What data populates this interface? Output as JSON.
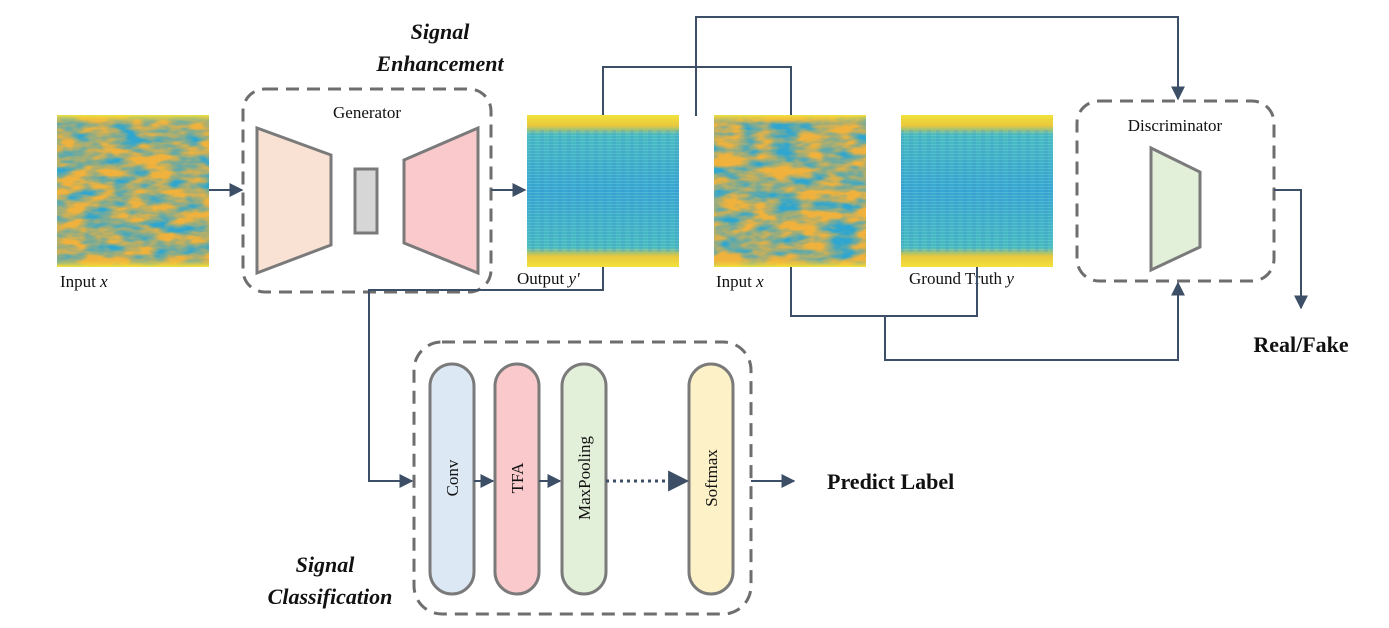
{
  "sections": {
    "enhancement_title": [
      "Signal",
      "Enhancement"
    ],
    "classification_title": [
      "Signal",
      "Classification"
    ]
  },
  "generator": {
    "label": "Generator"
  },
  "discriminator": {
    "label": "Discriminator",
    "output": "Real/Fake"
  },
  "images": {
    "input1": {
      "label": "Input ",
      "var": "x"
    },
    "output": {
      "label": "Output ",
      "var": "y'"
    },
    "input2": {
      "label": "Input ",
      "var": "x"
    },
    "ground_truth": {
      "label": "Ground Truth ",
      "var": "y"
    }
  },
  "classifier": {
    "layers": [
      "Conv",
      "TFA",
      "MaxPooling",
      "Softmax"
    ],
    "output": "Predict Label"
  },
  "colors": {
    "arrow": "#3d4f66",
    "dashed_box": "#6e6e6e",
    "encoder": "#f9e1d4",
    "bottleneck": "#d6d6d6",
    "decoder": "#f9c9cc",
    "discriminator": "#e2efd9",
    "conv": "#dce8f4",
    "tfa": "#f9c9cc",
    "maxpool": "#e2efd9",
    "softmax": "#fdf1c7",
    "spec_yellow": "#f2e23a",
    "spec_orange": "#f0b23c",
    "spec_teal": "#3cb4c8",
    "spec_blue": "#3a9fd8"
  }
}
